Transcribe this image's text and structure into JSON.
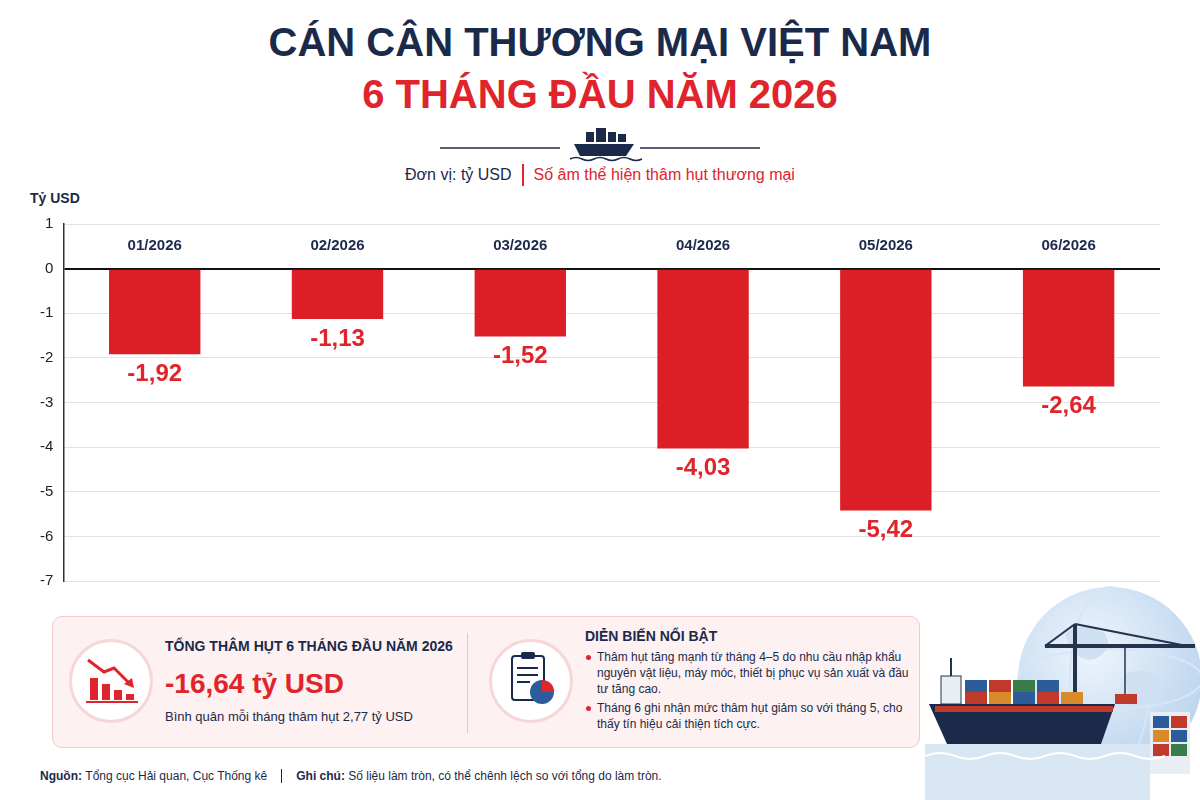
{
  "chart_data": {
    "type": "bar",
    "title": "CÁN CÂN THƯƠNG MẠI VIỆT NAM",
    "subtitle": "6 THÁNG ĐẦU NĂM 2026",
    "annotations": [
      "Đơn vị: tỷ USD",
      "Số âm thể hiện thâm hụt thương mại"
    ],
    "ylabel": "Tỷ USD",
    "categories": [
      "01/2026",
      "02/2026",
      "03/2026",
      "04/2026",
      "05/2026",
      "06/2026"
    ],
    "values": [
      -1.92,
      -1.13,
      -1.52,
      -4.03,
      -5.42,
      -2.64
    ],
    "value_labels": [
      "-1,92",
      "-1,13",
      "-1,52",
      "-4,03",
      "-5,42",
      "-2,64"
    ],
    "data_labels": true,
    "color": "#dc1f26",
    "ylim": [
      -7,
      1
    ],
    "yticks": [
      1,
      0,
      -1,
      -2,
      -3,
      -4,
      -5,
      -6,
      -7
    ],
    "grid": true
  },
  "summary": {
    "title": "TỔNG THÂM HỤT 6 THÁNG ĐẦU NĂM 2026",
    "value": "-16,64 tỷ USD",
    "note": "Bình quân mỗi tháng thâm hụt 2,77 tỷ USD"
  },
  "highlights": {
    "title": "DIỄN BIẾN NỔI BẬT",
    "items": [
      "Thâm hụt tăng mạnh từ tháng 4–5 do nhu cầu nhập khẩu nguyên vật liệu, máy móc, thiết bị phục vụ sản xuất và đầu tư tăng cao.",
      "Tháng 6 ghi nhận mức thâm hụt giảm so với tháng 5, cho thấy tín hiệu cải thiện tích cực."
    ]
  },
  "footer": {
    "source_label": "Nguồn:",
    "source": "Tổng cục Hải quan, Cục Thống kê",
    "note_label": "Ghi chú:",
    "note": "Số liệu làm tròn, có thể chênh lệch so với tổng do làm tròn."
  }
}
